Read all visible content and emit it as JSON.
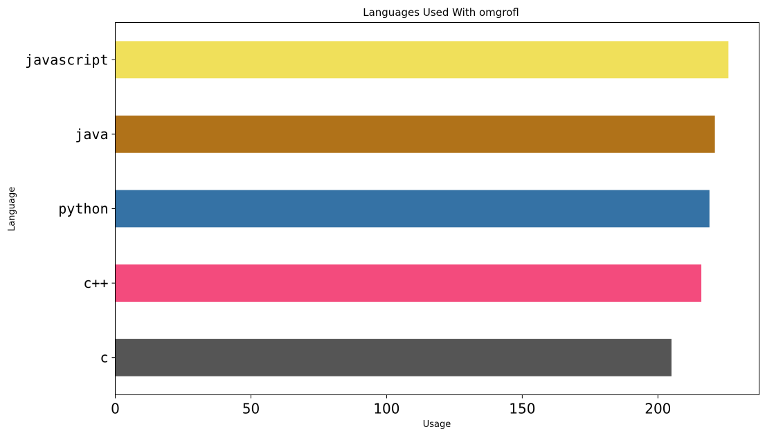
{
  "chart_data": {
    "type": "bar",
    "orientation": "horizontal",
    "title": "Languages Used With omgrofl",
    "xlabel": "Usage",
    "ylabel": "Language",
    "categories": [
      "javascript",
      "java",
      "python",
      "c++",
      "c"
    ],
    "values": [
      226,
      221,
      219,
      216,
      205
    ],
    "colors": [
      "#f0e05a",
      "#b07219",
      "#3572a5",
      "#f34b7d",
      "#555555"
    ],
    "xlim": [
      0,
      237.3
    ],
    "xticks": [
      0,
      50,
      100,
      150,
      200
    ],
    "grid": false,
    "legend": "none"
  }
}
